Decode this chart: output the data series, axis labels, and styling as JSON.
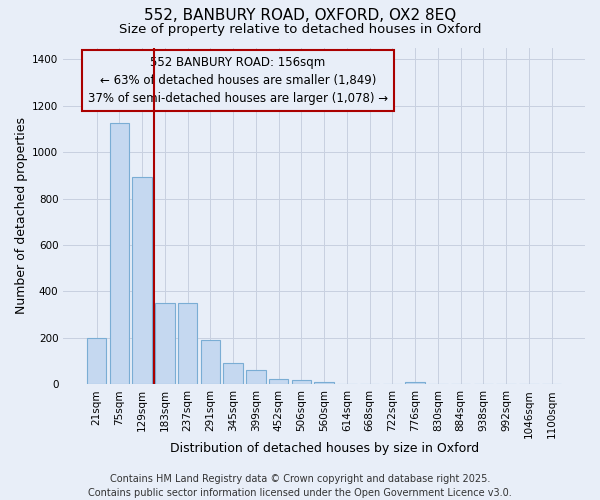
{
  "title_line1": "552, BANBURY ROAD, OXFORD, OX2 8EQ",
  "title_line2": "Size of property relative to detached houses in Oxford",
  "xlabel": "Distribution of detached houses by size in Oxford",
  "ylabel": "Number of detached properties",
  "categories": [
    "21sqm",
    "75sqm",
    "129sqm",
    "183sqm",
    "237sqm",
    "291sqm",
    "345sqm",
    "399sqm",
    "452sqm",
    "506sqm",
    "560sqm",
    "614sqm",
    "668sqm",
    "722sqm",
    "776sqm",
    "830sqm",
    "884sqm",
    "938sqm",
    "992sqm",
    "1046sqm",
    "1100sqm"
  ],
  "values": [
    200,
    1125,
    893,
    352,
    352,
    193,
    93,
    60,
    22,
    18,
    10,
    0,
    0,
    0,
    8,
    0,
    0,
    0,
    0,
    0,
    0
  ],
  "bar_color": "#c5d8f0",
  "bar_edge_color": "#7aadd4",
  "background_color": "#e8eef8",
  "grid_color": "#c8d0e0",
  "vline_x": 2.5,
  "vline_color": "#aa0000",
  "annotation_line1": "552 BANBURY ROAD: 156sqm",
  "annotation_line2": "← 63% of detached houses are smaller (1,849)",
  "annotation_line3": "37% of semi-detached houses are larger (1,078) →",
  "annotation_edge_color": "#aa0000",
  "footer_text": "Contains HM Land Registry data © Crown copyright and database right 2025.\nContains public sector information licensed under the Open Government Licence v3.0.",
  "ylim": [
    0,
    1450
  ],
  "yticks": [
    0,
    200,
    400,
    600,
    800,
    1000,
    1200,
    1400
  ],
  "title_fontsize": 11,
  "subtitle_fontsize": 9.5,
  "axis_label_fontsize": 9,
  "tick_fontsize": 7.5,
  "annotation_fontsize": 8.5,
  "footer_fontsize": 7
}
